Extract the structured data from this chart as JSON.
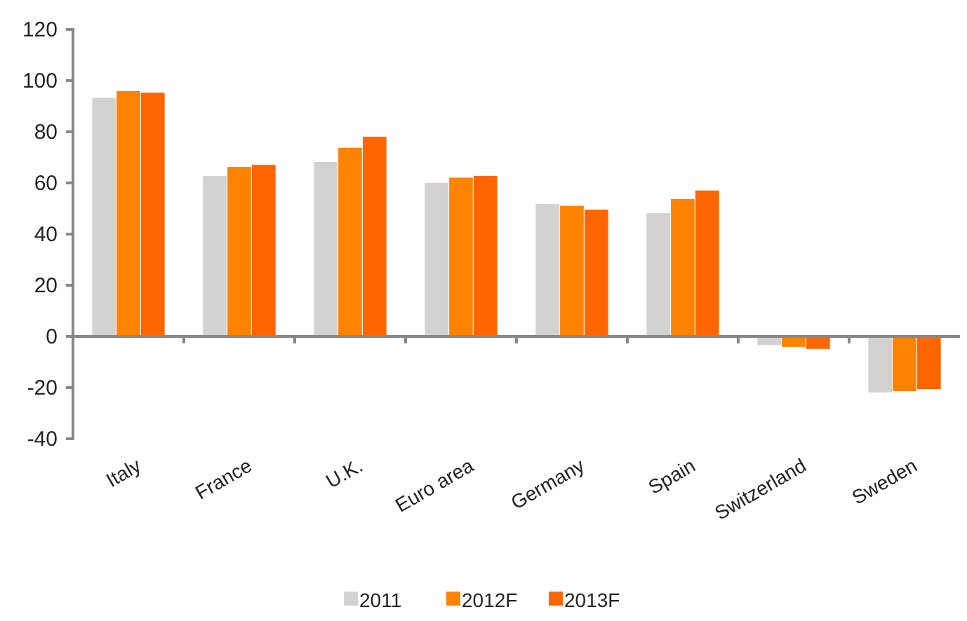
{
  "chart_data": {
    "type": "bar",
    "categories": [
      "Italy",
      "France",
      "U.K.",
      "Euro area",
      "Germany",
      "Spain",
      "Switzerland",
      "Sweden"
    ],
    "series": [
      {
        "name": "2011",
        "color": "#d3d2d0",
        "values": [
          93.4,
          62.9,
          68.4,
          60.2,
          51.9,
          48.4,
          -3.5,
          -22
        ]
      },
      {
        "name": "2012F",
        "color": "#ff8200",
        "values": [
          96.1,
          66.4,
          73.9,
          62.2,
          51.2,
          53.9,
          -4.2,
          -21.5
        ]
      },
      {
        "name": "2013F",
        "color": "#ff6600",
        "values": [
          95.4,
          67.2,
          78.2,
          62.9,
          49.7,
          57.2,
          -5,
          -20.7
        ]
      }
    ],
    "ylim": [
      -40,
      120
    ],
    "yticks": [
      -40,
      -20,
      0,
      20,
      40,
      60,
      80,
      100,
      120
    ],
    "legend": "bottom"
  }
}
